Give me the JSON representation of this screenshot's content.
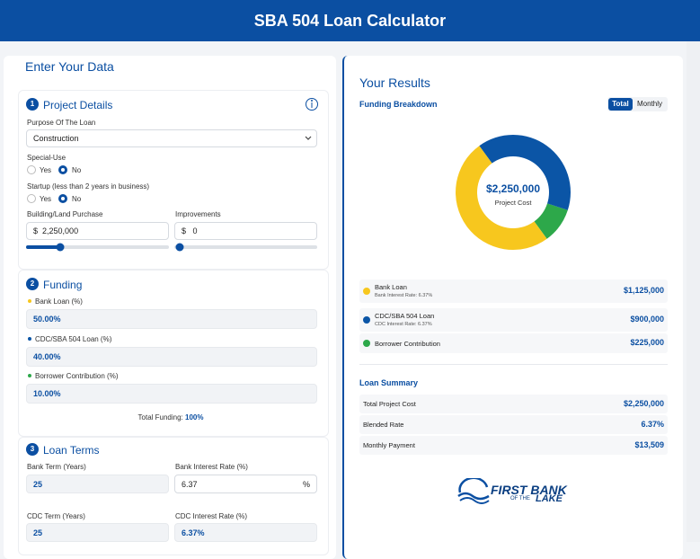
{
  "header": {
    "title": "SBA 504 Loan Calculator"
  },
  "input": {
    "title": "Enter Your Data",
    "project": {
      "number": "1",
      "title": "Project Details",
      "purpose": {
        "label": "Purpose Of The Loan",
        "value": "Construction"
      },
      "special_use": {
        "label": "Special-Use",
        "options": [
          "Yes",
          "No"
        ]
      },
      "startup": {
        "label": "Startup (less than 2 years in business)",
        "options": [
          "Yes",
          "No"
        ]
      },
      "building": {
        "label": "Building/Land Purchase",
        "currency": "$",
        "value": "2,250,000"
      },
      "improvements": {
        "label": "Improvements",
        "currency": "$",
        "value": "0"
      }
    },
    "funding": {
      "number": "2",
      "title": "Funding",
      "fields": [
        {
          "label": "Bank Loan (%)",
          "value": "50.00%"
        },
        {
          "label": "CDC/SBA 504 Loan (%)",
          "value": "40.00%"
        },
        {
          "label": "Borrower Contribution (%)",
          "value": "10.00%"
        }
      ],
      "total_label": "Total Funding:",
      "total_value": "100%"
    },
    "terms": {
      "number": "3",
      "title": "Loan Terms",
      "bank_term": {
        "label": "Bank Term (Years)",
        "value": "25"
      },
      "bank_rate": {
        "label": "Bank Interest Rate (%)",
        "value": "6.37",
        "unit": "%"
      },
      "cdc_term": {
        "label": "CDC Term (Years)",
        "value": "25"
      },
      "cdc_rate": {
        "label": "CDC Interest Rate (%)",
        "value": "6.37%"
      }
    }
  },
  "results": {
    "title": "Your Results",
    "breakdown_title": "Funding Breakdown",
    "toggle": [
      "Total",
      "Monthly"
    ],
    "center_value": "$2,250,000",
    "center_label": "Project Cost",
    "rates": [
      "Bank Interest Rate: 6.37%",
      "CDC Interest Rate: 6.37%"
    ],
    "summary": {
      "title": "Loan Summary",
      "rows": [
        [
          "Total Project Cost",
          "$2,250,000"
        ],
        [
          "Blended Rate",
          "6.37%"
        ],
        [
          "Monthly Payment",
          "$13,509"
        ]
      ]
    },
    "logo": {
      "main": "FIRST BANK",
      "small": "OF THE",
      "lake": "LAKE"
    }
  },
  "chart_data": {
    "type": "donut",
    "categories": [
      "Bank Loan",
      "CDC/SBA 504 Loan",
      "Borrower Contribution"
    ],
    "values": [
      1125000,
      900000,
      225000
    ],
    "value_labels": [
      "$1,125,000",
      "$900,000",
      "$225,000"
    ],
    "colors": [
      "#f7c71e",
      "#0b55a6",
      "#2da84a"
    ]
  }
}
